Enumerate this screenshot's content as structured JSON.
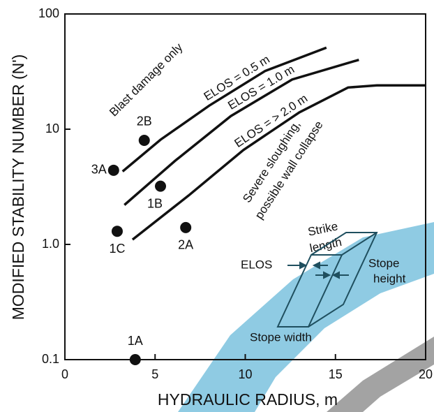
{
  "chart_data": {
    "type": "line",
    "y_axis_label": "MODIFIED STABILITY NUMBER (N')",
    "x_axis_label": "HYDRAULIC RADIUS, m",
    "xlim": [
      0,
      20
    ],
    "xticks": [
      0,
      5,
      10,
      15,
      20
    ],
    "ylim": [
      0.1,
      100
    ],
    "yscale": "log",
    "yticks": [
      0.1,
      {
        "value": 1,
        "label": "1.0"
      },
      10,
      100
    ],
    "color": "#111111",
    "series": [
      {
        "name": "ELOS = 0.5 m",
        "x": [
          3.2,
          5.3,
          8.0,
          11.1,
          14.5
        ],
        "y": [
          4.3,
          8.1,
          16,
          32,
          51
        ]
      },
      {
        "name": "ELOS = 1.0 m",
        "x": [
          3.3,
          6.1,
          9.2,
          12.6,
          16.3
        ],
        "y": [
          2.2,
          5.3,
          13,
          27,
          40
        ]
      },
      {
        "name": "ELOS = > 2.0 m",
        "x": [
          3.75,
          6.85,
          9.9,
          13.0,
          15.7,
          17.3,
          20
        ],
        "y": [
          1.1,
          2.65,
          6.6,
          14,
          23,
          24,
          24
        ]
      }
    ],
    "points": [
      {
        "label": "3A",
        "x": 2.7,
        "y": 4.4
      },
      {
        "label": "2B",
        "x": 4.4,
        "y": 8.0
      },
      {
        "label": "1B",
        "x": 5.3,
        "y": 3.2
      },
      {
        "label": "1C",
        "x": 2.9,
        "y": 1.3
      },
      {
        "label": "2A",
        "x": 6.7,
        "y": 1.4
      },
      {
        "label": "1A",
        "x": 3.9,
        "y": 0.1
      }
    ],
    "annotations": {
      "blast": "Blast damage only",
      "severe_1": "Severe sloughing,",
      "severe_2": "possible wall collapse",
      "strike_1": "Strike",
      "strike_2": "length",
      "elos": "ELOS",
      "stope_height_1": "Stope",
      "stope_height_2": "height",
      "stope_width": "Stope width"
    }
  }
}
